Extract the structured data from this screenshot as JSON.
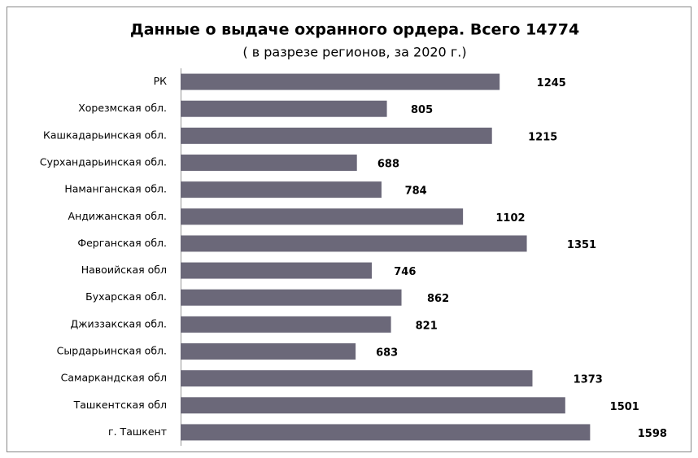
{
  "chart_data": {
    "type": "bar",
    "orientation": "horizontal",
    "title": "Данные о выдаче охранного ордера. Всего 14774",
    "subtitle": "( в разрезе регионов, за 2020 г.)",
    "categories": [
      "РК",
      "Хорезмская обл.",
      "Кашкадарьинская обл.",
      "Сурхандарьинская обл.",
      "Наманганская обл.",
      "Андижанская обл.",
      "Ферганская обл.",
      "Навоийская обл",
      "Бухарская обл.",
      "Джиззакская обл.",
      "Сырдарьинская обл.",
      "Самаркандская обл",
      "Ташкентская обл",
      "г. Ташкент"
    ],
    "values": [
      1245,
      805,
      1215,
      688,
      784,
      1102,
      1351,
      746,
      862,
      821,
      683,
      1373,
      1501,
      1598
    ],
    "color": "#6b6879",
    "xlim": [
      0,
      2000
    ]
  }
}
